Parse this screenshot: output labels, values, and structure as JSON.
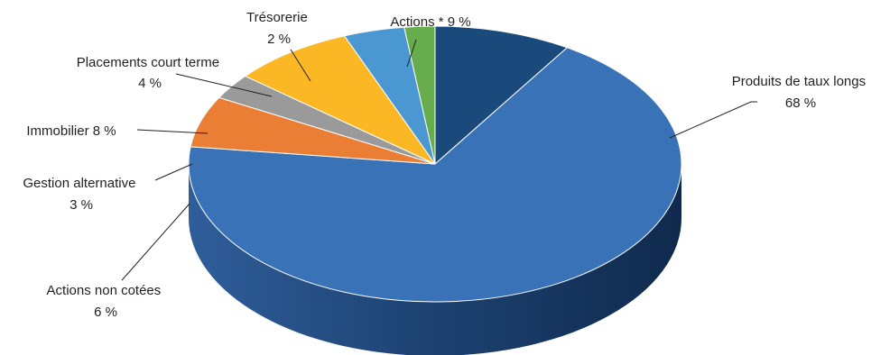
{
  "chart_data": {
    "type": "pie",
    "style": "3d",
    "title": "",
    "slices": [
      {
        "label": "Actions *",
        "pct_text": "9 %",
        "value": 9,
        "color": "#1a4a7c"
      },
      {
        "label": "Produits de taux longs",
        "pct_text": "68 %",
        "value": 68,
        "color": "#3a72b8"
      },
      {
        "label": "Actions non cotées",
        "pct_text": "6 %",
        "value": 6,
        "color": "#ea7e34"
      },
      {
        "label": "Gestion alternative",
        "pct_text": "3 %",
        "value": 3,
        "color": "#9a9a9a"
      },
      {
        "label": "Immobilier",
        "pct_text": "8 %",
        "value": 8,
        "color": "#fbb824"
      },
      {
        "label": "Placements court terme",
        "pct_text": "4 %",
        "value": 4,
        "color": "#4b97d2"
      },
      {
        "label": "Trésorerie",
        "pct_text": "2 %",
        "value": 2,
        "color": "#67ad4e"
      }
    ]
  }
}
